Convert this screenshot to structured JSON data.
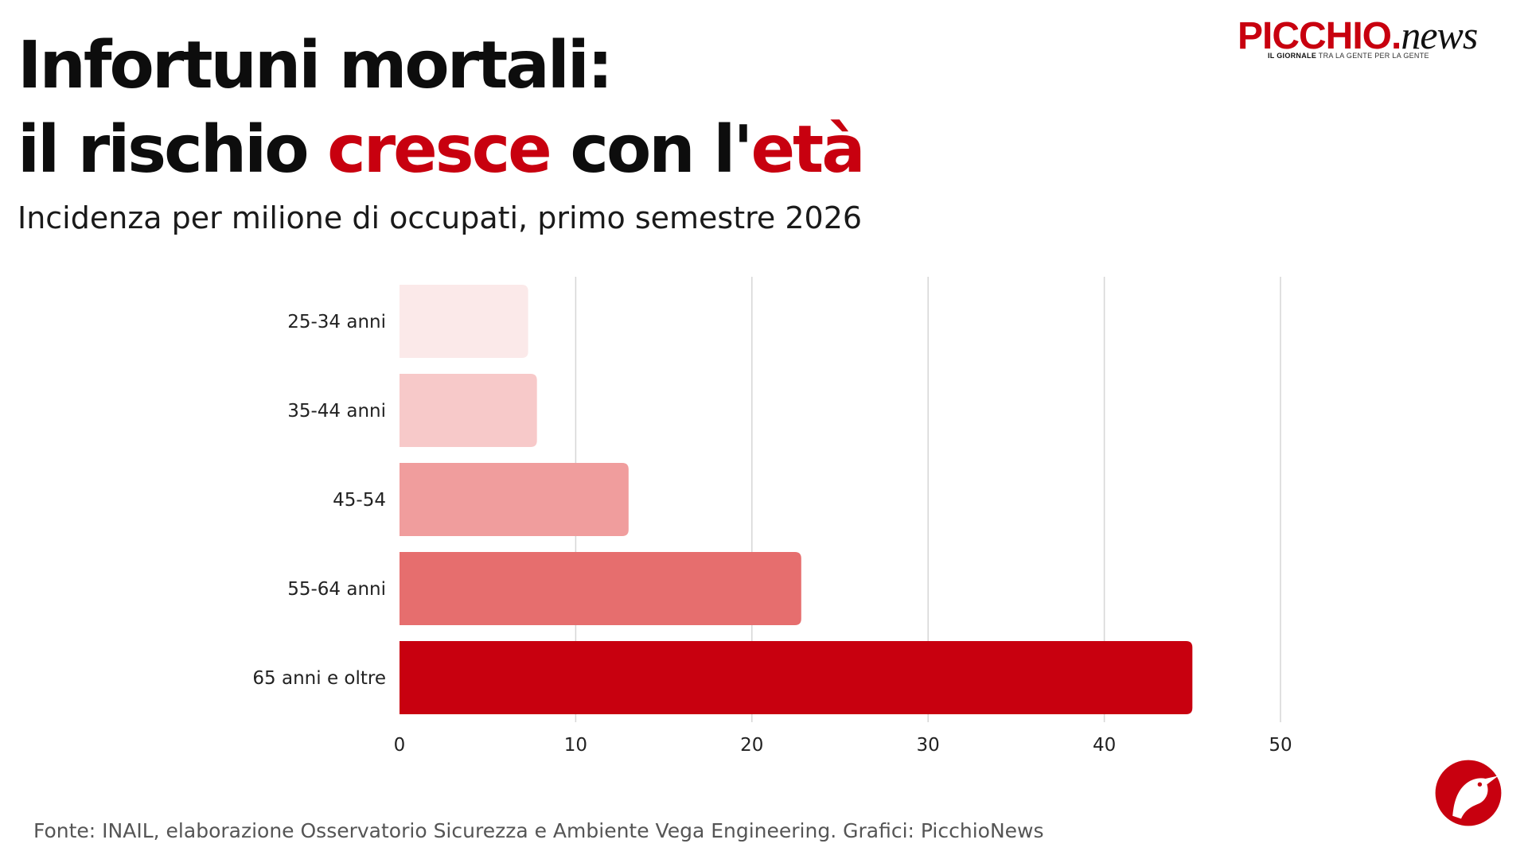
{
  "header": {
    "title_line1": "Infortuni mortali:",
    "title_line2_part1": "il rischio ",
    "title_line2_accent1": "cresce",
    "title_line2_part2": " con l'",
    "title_line2_accent2": "età",
    "subtitle": "Incidenza per milione di occupati, primo semestre 2026"
  },
  "brand": {
    "name_main": "PICCHIO.",
    "name_suffix": "news",
    "tag_bold": "IL GIORNALE",
    "tag_rest": " TRA LA GENTE PER LA GENTE",
    "accent_color": "#c8000f"
  },
  "footer": {
    "source": "Fonte: INAIL, elaborazione Osservatorio Sicurezza e Ambiente Vega Engineering. Grafici: PicchioNews"
  },
  "chart_data": {
    "type": "bar",
    "orientation": "horizontal",
    "categories": [
      "25-34 anni",
      "35-44 anni",
      "45-54",
      "55-64 anni",
      "65 anni e oltre"
    ],
    "values": [
      7.3,
      7.8,
      13.0,
      22.8,
      45.0
    ],
    "colors": [
      "#fbe9e9",
      "#f7c9c9",
      "#f09d9d",
      "#e66e6e",
      "#c8000f"
    ],
    "xlim": [
      0,
      50
    ],
    "xticks": [
      0,
      10,
      20,
      30,
      40,
      50
    ],
    "grid": true,
    "legend": "none"
  }
}
